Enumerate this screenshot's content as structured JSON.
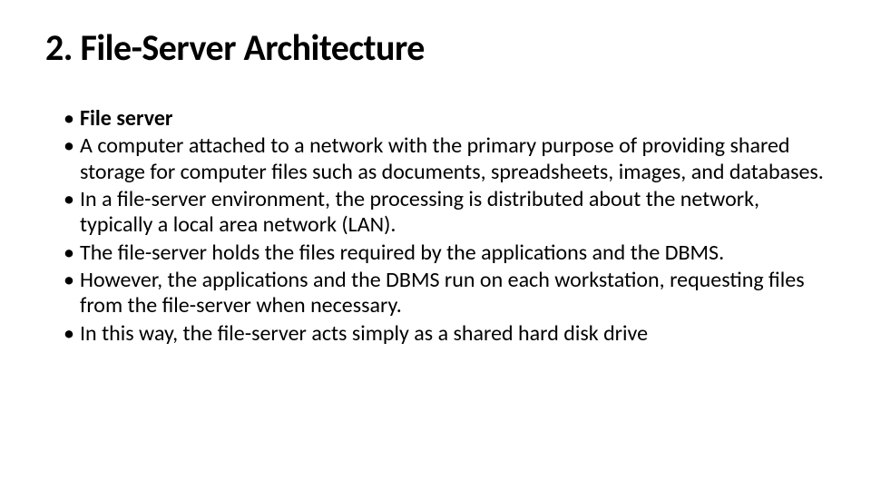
{
  "slide": {
    "title": "2. File-Server Architecture",
    "title_fontsize": 40,
    "title_fontweight": 700,
    "body_fontsize": 24,
    "background_color": "#ffffff",
    "text_color": "#000000",
    "font_family": "Calibri",
    "bullets": [
      {
        "text": "File server",
        "bold": true
      },
      {
        "text": "A computer attached to a network with the primary purpose of providing shared storage for computer files such as documents, spreadsheets, images, and databases.",
        "bold": false
      },
      {
        "text": "In a file-server environment, the processing is distributed about the network, typically a local area network (LAN).",
        "bold": false
      },
      {
        "text": "The file-server holds the files required by the applications and the DBMS.",
        "bold": false
      },
      {
        "text": "However, the applications and the DBMS run on each workstation, requesting files from the file-server when necessary.",
        "bold": false
      },
      {
        "text": " In this way, the file-server acts simply as a shared hard disk drive",
        "bold": false
      }
    ]
  }
}
